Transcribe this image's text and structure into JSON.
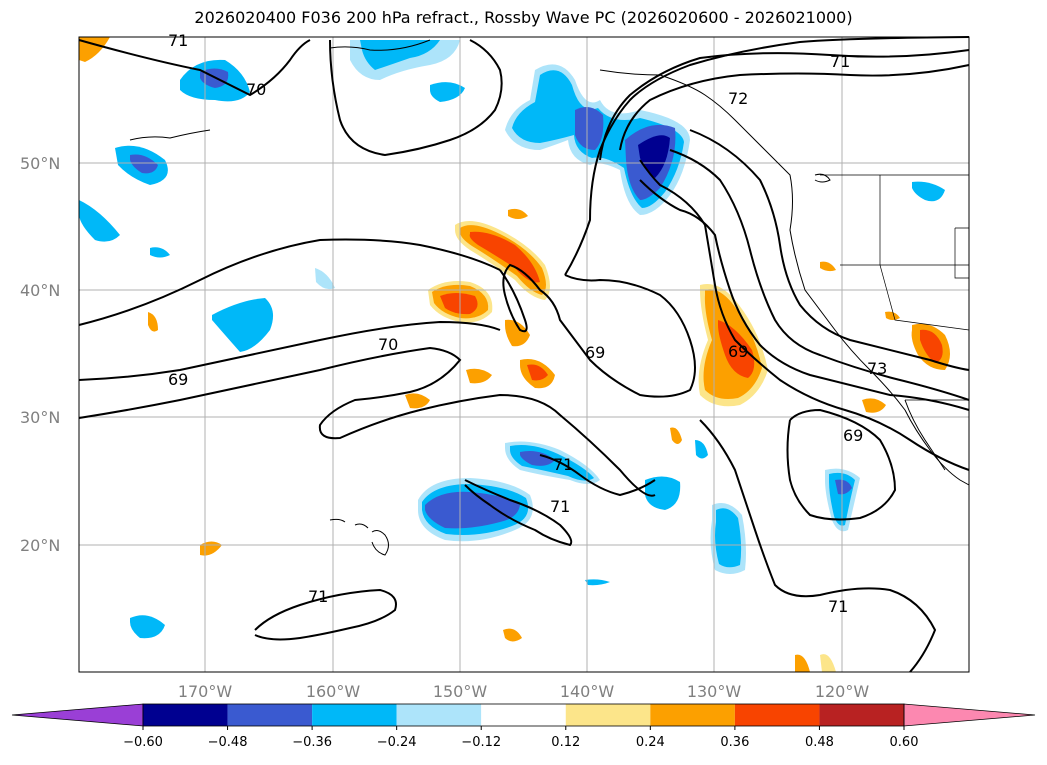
{
  "title": "2026020400 F036 200 hPa refract., Rossby Wave PC (2026020600 - 2026021000)",
  "lat_labels": [
    "50°N",
    "40°N",
    "30°N",
    "20°N"
  ],
  "lon_labels": [
    "170°W",
    "160°W",
    "150°W",
    "140°W",
    "130°W",
    "120°W"
  ],
  "contour_labels": [
    "71",
    "70",
    "69",
    "70",
    "69",
    "72",
    "71",
    "69",
    "71",
    "71",
    "69",
    "73",
    "71",
    "71"
  ],
  "colorbar": {
    "ticks": [
      "−0.60",
      "−0.48",
      "−0.36",
      "−0.24",
      "−0.12",
      "0.12",
      "0.24",
      "0.36",
      "0.48",
      "0.60"
    ],
    "colors": [
      "#9a3fd6",
      "#000090",
      "#3a5ad0",
      "#00b8f8",
      "#ade4fa",
      "#ffffff",
      "#fce58a",
      "#fca000",
      "#f84400",
      "#b82222",
      "#fc88b0"
    ]
  },
  "fill_colors": {
    "light_blue": "#ade4fa",
    "blue": "#00b8f8",
    "mid_blue": "#3a5ad0",
    "dark_blue": "#000090",
    "yellow": "#fce58a",
    "orange": "#fca000",
    "red_orange": "#f84400"
  }
}
